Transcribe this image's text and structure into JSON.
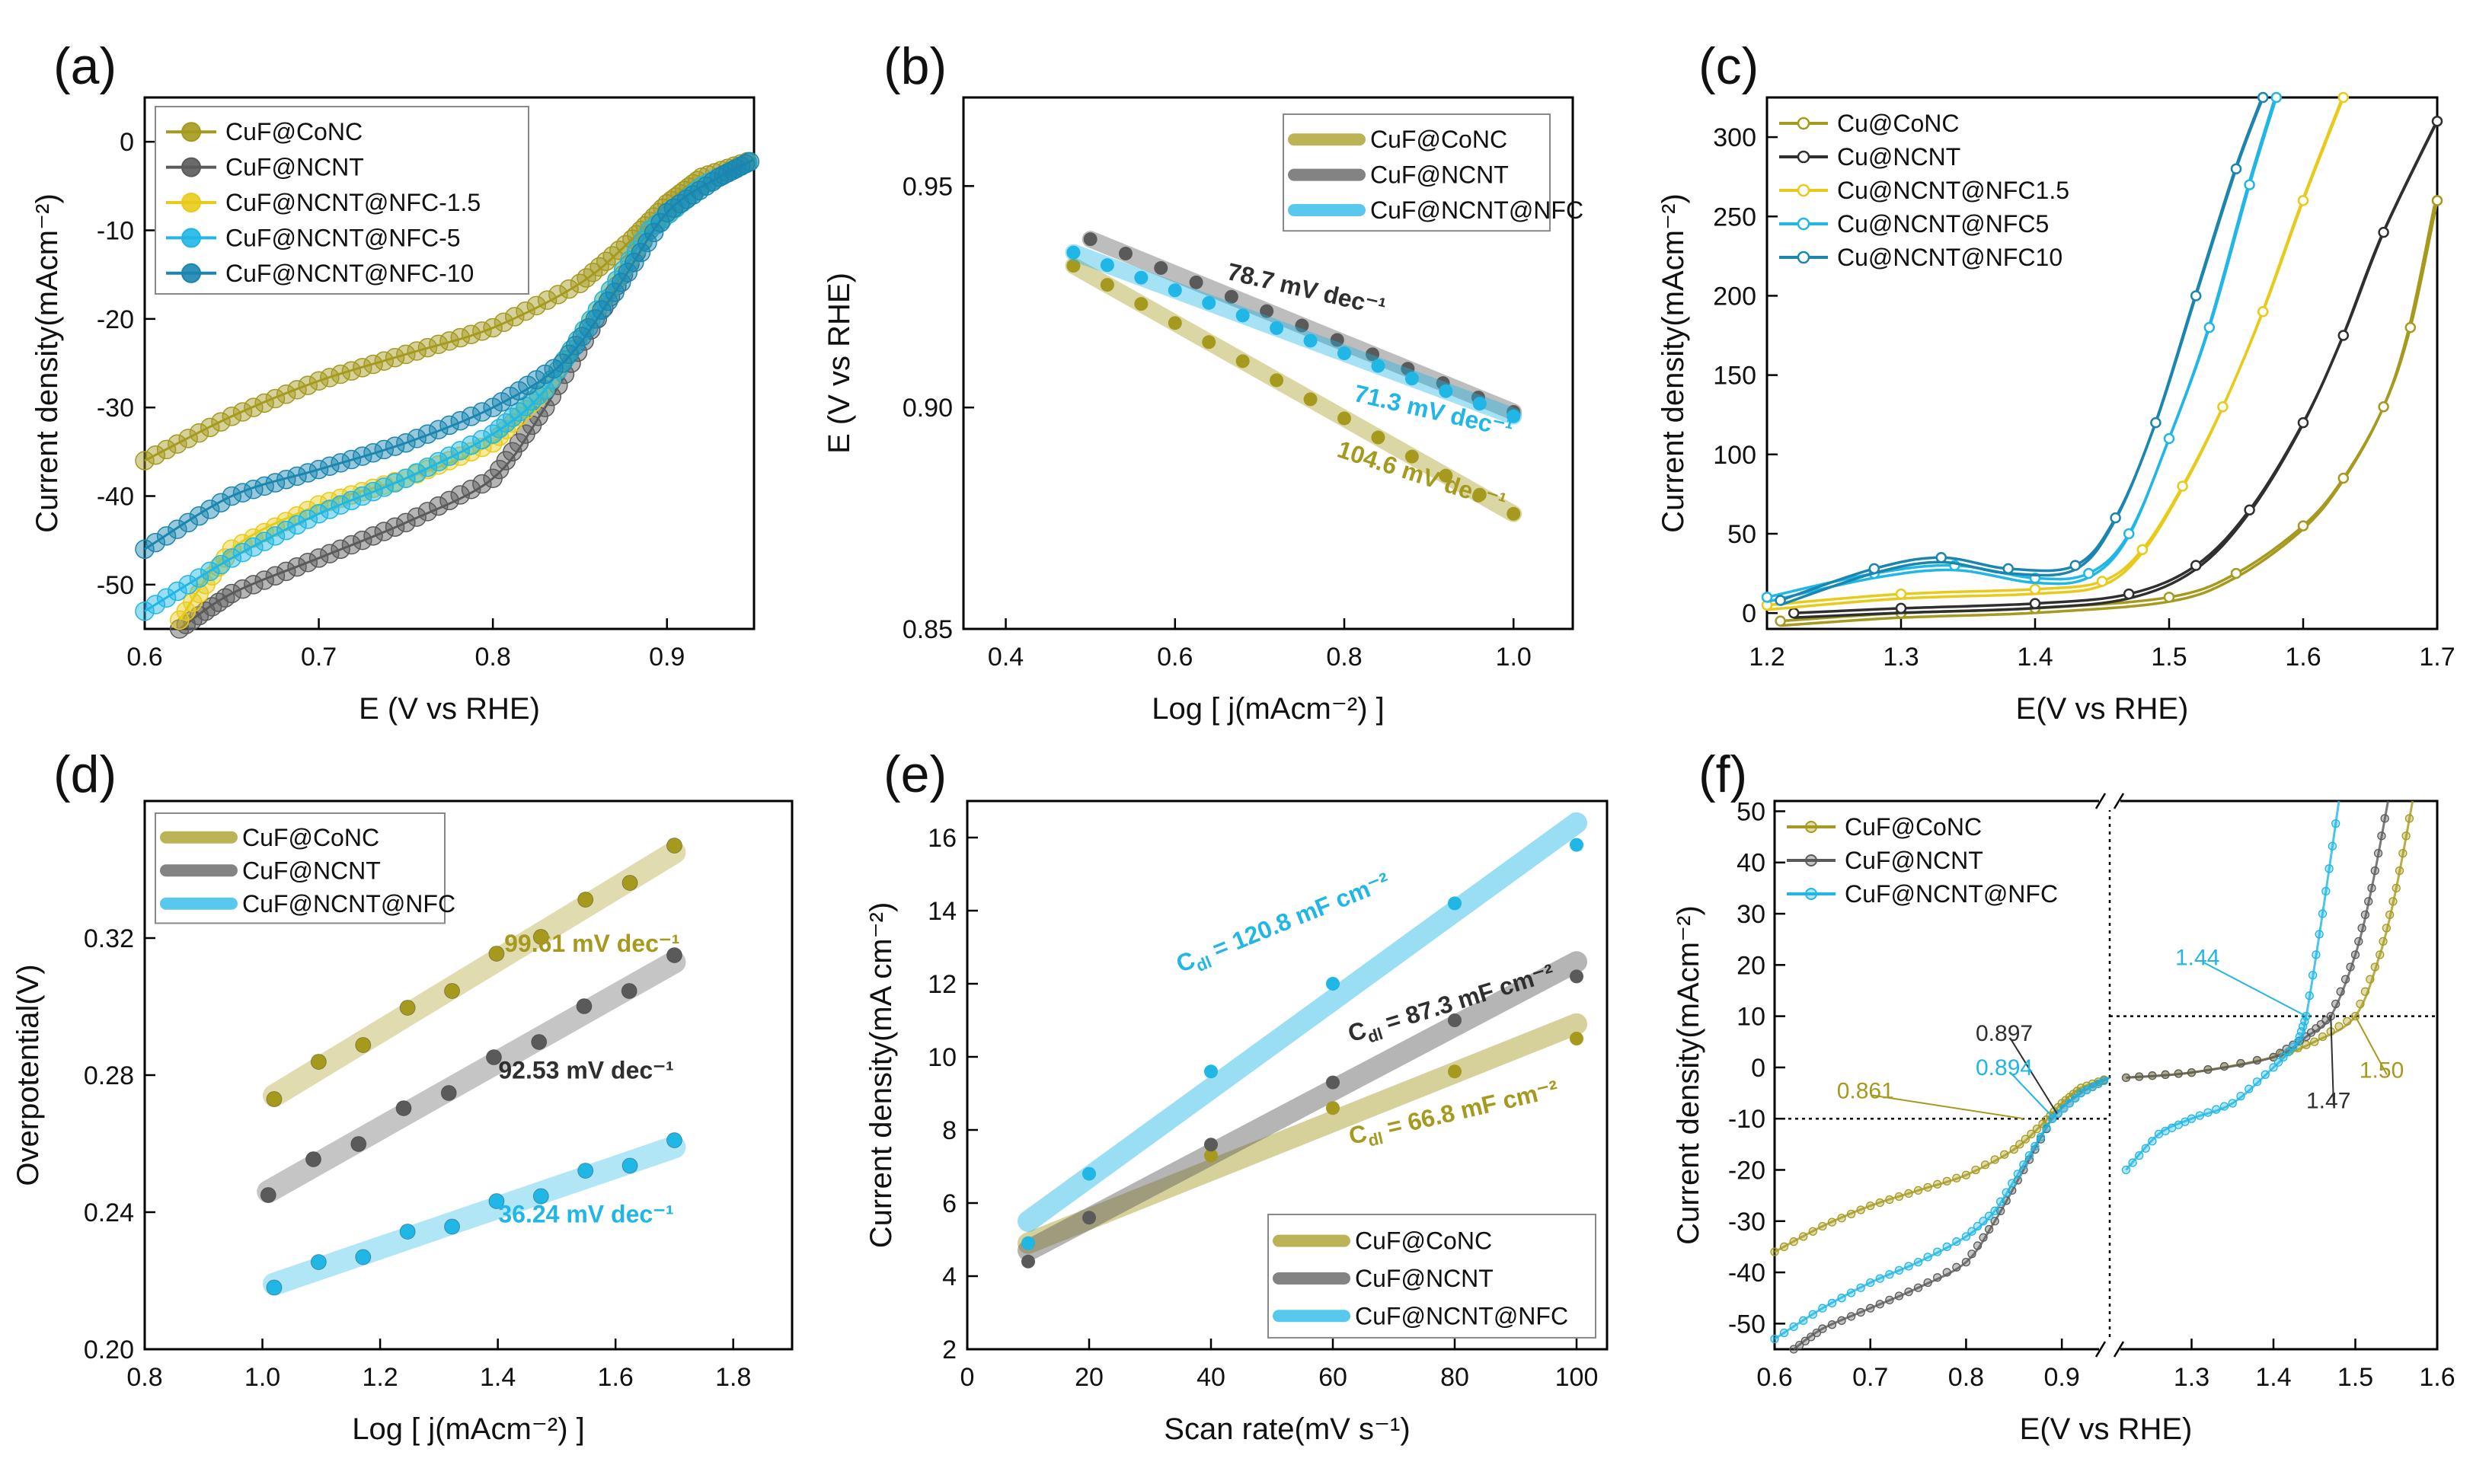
{
  "colors": {
    "olive": "#A59A1E",
    "gray": "#5A5A5A",
    "yellow": "#E8CB1A",
    "cyan": "#20B6E6",
    "teal": "#1A86B0",
    "dark": "#2F2F2F"
  },
  "chart_data": [
    {
      "panel": "(a)",
      "type": "line",
      "xlabel": "E (V vs RHE)",
      "ylabel": "Current density(mAcm⁻²)",
      "xlim": [
        0.6,
        0.95
      ],
      "ylim": [
        -55,
        5
      ],
      "xticks": [
        0.6,
        0.7,
        0.8,
        0.9
      ],
      "yticks": [
        0,
        -10,
        -20,
        -30,
        -40,
        -50
      ],
      "legend": [
        "CuF@CoNC",
        "CuF@NCNT",
        "CuF@NCNT@NFC-1.5",
        "CuF@NCNT@NFC-5",
        "CuF@NCNT@NFC-10"
      ],
      "series": [
        {
          "name": "CuF@CoNC",
          "color": "olive",
          "x": [
            0.6,
            0.65,
            0.7,
            0.75,
            0.8,
            0.85,
            0.88,
            0.9,
            0.92,
            0.95
          ],
          "y": [
            -36,
            -31,
            -27,
            -24,
            -21,
            -16,
            -11,
            -7,
            -4,
            -2
          ]
        },
        {
          "name": "CuF@NCNT",
          "color": "gray",
          "x": [
            0.62,
            0.65,
            0.7,
            0.75,
            0.8,
            0.83,
            0.86,
            0.89,
            0.92,
            0.95
          ],
          "y": [
            -55,
            -51,
            -47,
            -43,
            -38,
            -30,
            -20,
            -10,
            -5,
            -2
          ]
        },
        {
          "name": "CuF@NCNT@NFC-1.5",
          "color": "yellow",
          "x": [
            0.62,
            0.65,
            0.7,
            0.75,
            0.8,
            0.83,
            0.86,
            0.89,
            0.92,
            0.95
          ],
          "y": [
            -54,
            -46,
            -41,
            -38,
            -34,
            -28,
            -19,
            -10,
            -5,
            -2
          ]
        },
        {
          "name": "CuF@NCNT@NFC-5",
          "color": "cyan",
          "x": [
            0.6,
            0.65,
            0.7,
            0.75,
            0.8,
            0.83,
            0.86,
            0.89,
            0.92,
            0.95
          ],
          "y": [
            -53,
            -47,
            -42,
            -38,
            -33,
            -28,
            -19,
            -10,
            -5,
            -2
          ]
        },
        {
          "name": "CuF@NCNT@NFC-10",
          "color": "teal",
          "x": [
            0.6,
            0.65,
            0.7,
            0.75,
            0.8,
            0.84,
            0.87,
            0.9,
            0.93,
            0.95
          ],
          "y": [
            -46,
            -40,
            -37,
            -34,
            -30,
            -25,
            -17,
            -8,
            -4,
            -2
          ]
        }
      ]
    },
    {
      "panel": "(b)",
      "type": "scatter",
      "xlabel": "Log [ j(mAcm⁻²) ]",
      "ylabel": "E (V vs RHE)",
      "xlim": [
        0.35,
        1.07
      ],
      "ylim": [
        0.85,
        0.97
      ],
      "xticks": [
        0.4,
        0.6,
        0.8,
        1.0
      ],
      "yticks": [
        0.85,
        0.9,
        0.95
      ],
      "legend": [
        "CuF@CoNC",
        "CuF@NCNT",
        "CuF@NCNT@NFC"
      ],
      "series": [
        {
          "name": "CuF@CoNC",
          "color": "olive",
          "x0": 0.48,
          "x1": 1.0,
          "y0": 0.932,
          "y1": 0.876,
          "n": 14
        },
        {
          "name": "CuF@NCNT",
          "color": "gray",
          "x0": 0.5,
          "x1": 1.0,
          "y0": 0.938,
          "y1": 0.899,
          "n": 13
        },
        {
          "name": "CuF@NCNT@NFC",
          "color": "cyan",
          "x0": 0.48,
          "x1": 1.0,
          "y0": 0.935,
          "y1": 0.898,
          "n": 14
        }
      ],
      "annotations": [
        {
          "text": "78.7 mV dec⁻¹",
          "color": "dark"
        },
        {
          "text": "71.3 mV dec⁻¹",
          "color": "cyan"
        },
        {
          "text": "104.6 mV dec⁻¹",
          "color": "olive"
        }
      ]
    },
    {
      "panel": "(c)",
      "type": "line",
      "xlabel": "E(V vs RHE)",
      "ylabel": "Current density(mAcm⁻²)",
      "xlim": [
        1.2,
        1.7
      ],
      "ylim": [
        -10,
        325
      ],
      "xticks": [
        1.2,
        1.3,
        1.4,
        1.5,
        1.6,
        1.7
      ],
      "yticks": [
        0,
        50,
        100,
        150,
        200,
        250,
        300
      ],
      "legend": [
        "Cu@CoNC",
        "Cu@NCNT",
        "Cu@NCNT@NFC1.5",
        "Cu@NCNT@NFC5",
        "Cu@NCNT@NFC10"
      ],
      "series": [
        {
          "name": "Cu@CoNC",
          "color": "olive",
          "x": [
            1.21,
            1.3,
            1.4,
            1.5,
            1.55,
            1.6,
            1.63,
            1.66,
            1.68,
            1.7
          ],
          "y": [
            -5,
            0,
            3,
            10,
            25,
            55,
            85,
            130,
            180,
            260
          ]
        },
        {
          "name": "Cu@NCNT",
          "color": "dark",
          "x": [
            1.22,
            1.3,
            1.4,
            1.47,
            1.52,
            1.56,
            1.6,
            1.63,
            1.66,
            1.7
          ],
          "y": [
            0,
            3,
            6,
            12,
            30,
            65,
            120,
            175,
            240,
            310
          ]
        },
        {
          "name": "Cu@NCNT@NFC1.5",
          "color": "yellow",
          "x": [
            1.2,
            1.3,
            1.4,
            1.45,
            1.48,
            1.51,
            1.54,
            1.57,
            1.6,
            1.63
          ],
          "y": [
            5,
            12,
            15,
            20,
            40,
            80,
            130,
            190,
            260,
            325
          ]
        },
        {
          "name": "Cu@NCNT@NFC5",
          "color": "cyan",
          "x": [
            1.2,
            1.28,
            1.34,
            1.4,
            1.44,
            1.47,
            1.5,
            1.53,
            1.56,
            1.58
          ],
          "y": [
            10,
            25,
            30,
            22,
            25,
            50,
            110,
            180,
            270,
            325
          ]
        },
        {
          "name": "Cu@NCNT@NFC10",
          "color": "teal",
          "x": [
            1.21,
            1.28,
            1.33,
            1.38,
            1.43,
            1.46,
            1.49,
            1.52,
            1.55,
            1.57
          ],
          "y": [
            8,
            28,
            35,
            28,
            30,
            60,
            120,
            200,
            280,
            325
          ]
        }
      ]
    },
    {
      "panel": "(d)",
      "type": "scatter",
      "xlabel": "Log [ j(mAcm⁻²) ]",
      "ylabel": "Overpotential(V)",
      "xlim": [
        0.8,
        1.9
      ],
      "ylim": [
        0.2,
        0.36
      ],
      "xticks": [
        0.8,
        1.0,
        1.2,
        1.4,
        1.6,
        1.8
      ],
      "yticks": [
        0.2,
        0.24,
        0.28,
        0.32
      ],
      "legend": [
        "CuF@CoNC",
        "CuF@NCNT",
        "CuF@NCNT@NFC"
      ],
      "series": [
        {
          "name": "CuF@CoNC",
          "color": "olive",
          "x0": 1.02,
          "x1": 1.7,
          "y0": 0.274,
          "y1": 0.345,
          "n": 10
        },
        {
          "name": "CuF@NCNT",
          "color": "gray",
          "x0": 1.01,
          "x1": 1.7,
          "y0": 0.246,
          "y1": 0.313,
          "n": 10
        },
        {
          "name": "CuF@NCNT@NFC",
          "color": "cyan",
          "x0": 1.02,
          "x1": 1.7,
          "y0": 0.219,
          "y1": 0.259,
          "n": 10
        }
      ],
      "annotations": [
        {
          "text": "99.61 mV dec⁻¹",
          "color": "olive"
        },
        {
          "text": "92.53 mV dec⁻¹",
          "color": "dark"
        },
        {
          "text": "36.24 mV dec⁻¹",
          "color": "cyan"
        }
      ]
    },
    {
      "panel": "(e)",
      "type": "scatter",
      "xlabel": "Scan rate(mV s⁻¹)",
      "ylabel": "Current density(mA cm⁻²)",
      "xlim": [
        0,
        105
      ],
      "ylim": [
        2,
        17
      ],
      "xticks": [
        0,
        20,
        40,
        60,
        80,
        100
      ],
      "yticks": [
        2,
        4,
        6,
        8,
        10,
        12,
        14,
        16
      ],
      "legend": [
        "CuF@CoNC",
        "CuF@NCNT",
        "CuF@NCNT@NFC"
      ],
      "series": [
        {
          "name": "CuF@CoNC",
          "color": "olive",
          "x": [
            10,
            20,
            40,
            60,
            80,
            100
          ],
          "y": [
            4.9,
            5.6,
            7.3,
            8.6,
            9.6,
            10.5
          ],
          "fit": [
            4.9,
            10.9
          ]
        },
        {
          "name": "CuF@NCNT",
          "color": "gray",
          "x": [
            10,
            20,
            40,
            60,
            80,
            100
          ],
          "y": [
            4.4,
            5.6,
            7.6,
            9.3,
            11.0,
            12.2
          ],
          "fit": [
            4.7,
            12.6
          ]
        },
        {
          "name": "CuF@NCNT@NFC",
          "color": "cyan",
          "x": [
            10,
            20,
            40,
            60,
            80,
            100
          ],
          "y": [
            4.9,
            6.8,
            9.6,
            12.0,
            14.2,
            15.8
          ],
          "fit": [
            5.5,
            16.4
          ]
        }
      ],
      "annotations": [
        {
          "text": "C",
          "sub": "dl",
          "rest": " = 120.8 mF cm⁻²",
          "color": "cyan"
        },
        {
          "text": "C",
          "sub": "dl",
          "rest": " = 87.3 mF cm⁻²",
          "color": "dark"
        },
        {
          "text": "C",
          "sub": "dl",
          "rest": " = 66.8 mF cm⁻²",
          "color": "olive"
        }
      ]
    },
    {
      "panel": "(f)",
      "type": "line",
      "xlabel": "E(V vs RHE)",
      "ylabel": "Current density(mAcm⁻²)",
      "ylim": [
        -55,
        52
      ],
      "yticks": [
        50,
        40,
        30,
        20,
        10,
        0,
        -10,
        -20,
        -30,
        -40,
        -50
      ],
      "xticks_left": [
        0.6,
        0.7,
        0.8,
        0.9
      ],
      "xticks_right": [
        1.3,
        1.4,
        1.5,
        1.6
      ],
      "legend": [
        "CuF@CoNC",
        "CuF@NCNT",
        "CuF@NCNT@NFC"
      ],
      "left_series": [
        {
          "name": "CuF@CoNC",
          "color": "olive",
          "x": [
            0.6,
            0.65,
            0.7,
            0.75,
            0.8,
            0.85,
            0.88,
            0.9,
            0.92,
            0.95
          ],
          "y": [
            -36,
            -31,
            -27,
            -24,
            -21,
            -16,
            -11,
            -7,
            -4,
            -2
          ]
        },
        {
          "name": "CuF@NCNT",
          "color": "gray",
          "x": [
            0.62,
            0.65,
            0.7,
            0.75,
            0.8,
            0.83,
            0.86,
            0.89,
            0.92,
            0.95
          ],
          "y": [
            -55,
            -51,
            -47,
            -43,
            -38,
            -30,
            -20,
            -10,
            -5,
            -2
          ]
        },
        {
          "name": "CuF@NCNT@NFC",
          "color": "cyan",
          "x": [
            0.6,
            0.65,
            0.7,
            0.75,
            0.8,
            0.83,
            0.86,
            0.89,
            0.92,
            0.95
          ],
          "y": [
            -53,
            -47,
            -42,
            -38,
            -33,
            -28,
            -19,
            -10,
            -5,
            -2
          ]
        }
      ],
      "right_series": [
        {
          "name": "CuF@CoNC",
          "color": "olive",
          "x": [
            1.22,
            1.3,
            1.4,
            1.45,
            1.5,
            1.53,
            1.55,
            1.57
          ],
          "y": [
            -2,
            -1,
            2,
            5,
            10,
            22,
            35,
            52
          ]
        },
        {
          "name": "CuF@NCNT",
          "color": "gray",
          "x": [
            1.22,
            1.3,
            1.4,
            1.44,
            1.47,
            1.5,
            1.52,
            1.54
          ],
          "y": [
            -2,
            -1,
            2,
            6,
            10,
            22,
            35,
            52
          ]
        },
        {
          "name": "CuF@NCNT@NFC",
          "color": "cyan",
          "x": [
            1.22,
            1.26,
            1.3,
            1.35,
            1.4,
            1.43,
            1.44,
            1.46,
            1.48
          ],
          "y": [
            -20,
            -13,
            -10,
            -7,
            0,
            5,
            10,
            30,
            52
          ]
        }
      ],
      "annotations": [
        {
          "text": "0.897",
          "color": "dark"
        },
        {
          "text": "0.894",
          "color": "cyan"
        },
        {
          "text": "0.861",
          "color": "olive"
        },
        {
          "text": "1.44",
          "color": "cyan"
        },
        {
          "text": "1.47",
          "color": "dark"
        },
        {
          "text": "1.50",
          "color": "olive"
        }
      ]
    }
  ]
}
